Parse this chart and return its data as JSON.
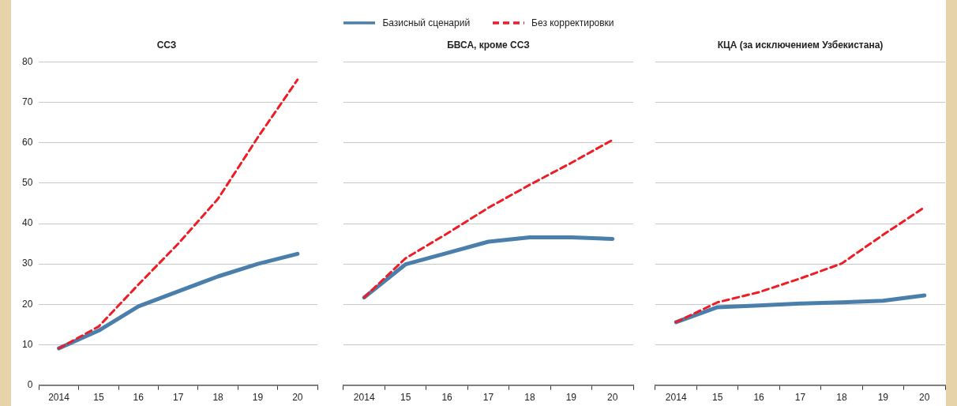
{
  "chart_data": [
    {
      "type": "line",
      "title": "ССЗ",
      "categories": [
        "2014",
        "15",
        "16",
        "17",
        "18",
        "19",
        "20"
      ],
      "ylim": [
        0,
        80
      ],
      "yticks": [
        0,
        10,
        20,
        30,
        40,
        50,
        60,
        70,
        80
      ],
      "grid": "y",
      "legend": "top",
      "marker": "none",
      "series": [
        {
          "name": "Базисный сценарий",
          "color": "#4a7eab",
          "line_style": "solid",
          "values": [
            9.1,
            13.5,
            19.5,
            23.2,
            26.9,
            30.0,
            32.5
          ]
        },
        {
          "name": "Без корректировки",
          "color": "#ee1c25",
          "line_style": "dashed",
          "values": [
            9.1,
            14.5,
            24.9,
            35.0,
            46.1,
            61.3,
            75.6
          ]
        }
      ]
    },
    {
      "type": "line",
      "title": "БВСА, кроме ССЗ",
      "categories": [
        "2014",
        "15",
        "16",
        "17",
        "18",
        "19",
        "20"
      ],
      "ylim": [
        0,
        80
      ],
      "yticks": [
        0,
        10,
        20,
        30,
        40,
        50,
        60,
        70,
        80
      ],
      "grid": "y",
      "tick_labels": "x",
      "marker": "none",
      "series": [
        {
          "color": "#4a7eab",
          "line_style": "solid",
          "values": [
            21.7,
            29.9,
            32.7,
            35.5,
            36.6,
            36.6,
            36.2
          ]
        },
        {
          "color": "#ee1c25",
          "line_style": "dashed",
          "values": [
            21.7,
            31.4,
            37.5,
            43.9,
            49.6,
            55.0,
            60.7
          ]
        }
      ]
    },
    {
      "type": "line",
      "title": "КЦА (за исключением Узбекистана)",
      "categories": [
        "2014",
        "15",
        "16",
        "17",
        "18",
        "19",
        "20"
      ],
      "ylim": [
        0,
        80
      ],
      "yticks": [
        0,
        10,
        20,
        30,
        40,
        50,
        60,
        70,
        80
      ],
      "grid": "y",
      "tick_labels": "x",
      "marker": "none",
      "series": [
        {
          "color": "#4a7eab",
          "line_style": "solid",
          "values": [
            15.6,
            19.3,
            19.7,
            20.2,
            20.5,
            20.9,
            22.2
          ]
        },
        {
          "color": "#ee1c25",
          "line_style": "dashed",
          "values": [
            15.6,
            20.5,
            23.0,
            26.4,
            30.1,
            37.2,
            44.0
          ]
        }
      ]
    }
  ]
}
